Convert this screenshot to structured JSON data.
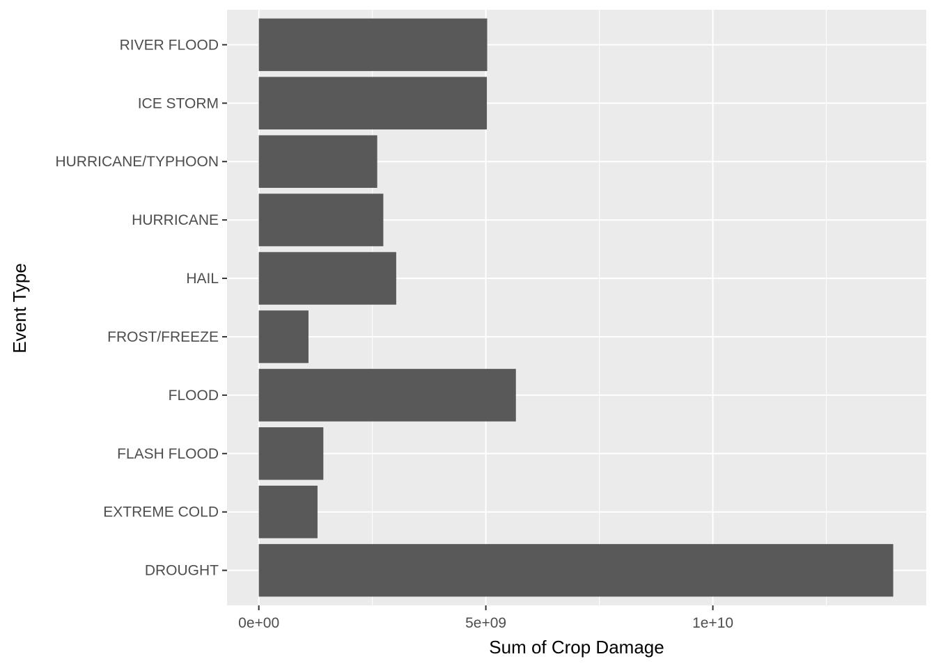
{
  "chart_data": {
    "type": "bar",
    "orientation": "horizontal",
    "title": "",
    "xlabel": "Sum of Crop Damage",
    "ylabel": "Event Type",
    "categories": [
      "DROUGHT",
      "EXTREME COLD",
      "FLASH FLOOD",
      "FLOOD",
      "FROST/FREEZE",
      "HAIL",
      "HURRICANE",
      "HURRICANE/TYPHOON",
      "ICE STORM",
      "RIVER FLOOD"
    ],
    "values": [
      13972566000,
      1292973000,
      1421317100,
      5661968450,
      1094086000,
      3026094623,
      2741910000,
      2607872800,
      5022113500,
      5029459000
    ],
    "xlim": [
      -700000000,
      14700000000
    ],
    "x_ticks": [
      {
        "value": 0,
        "label": "0e+00"
      },
      {
        "value": 5000000000,
        "label": "5e+09"
      },
      {
        "value": 10000000000,
        "label": "1e+10"
      }
    ],
    "x_minor_ticks": [
      2500000000,
      7500000000,
      12500000000
    ],
    "grid": true,
    "legend": "none",
    "colors": {
      "bar": "#595959",
      "panel_background": "#ebebeb",
      "grid": "#ffffff",
      "tick_text": "#4d4d4d",
      "axis_title": "#000000",
      "tick_mark": "#333333"
    }
  }
}
